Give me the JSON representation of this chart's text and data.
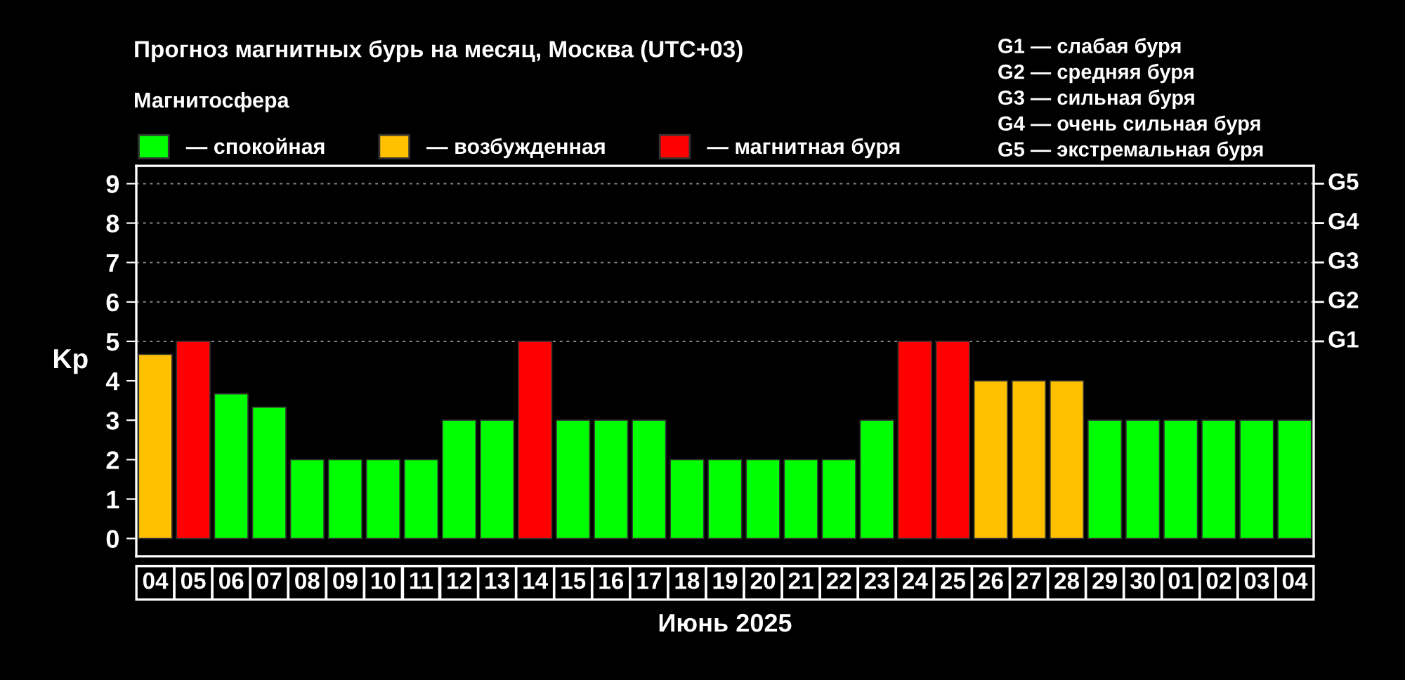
{
  "chart_data": {
    "type": "bar",
    "title": "Прогноз магнитных бурь на месяц, Москва (UTC+03)",
    "xlabel": "Июнь 2025",
    "ylabel": "Kp",
    "legend_title": "Магнитосфера",
    "legend": "top left",
    "categories": [
      "04",
      "05",
      "06",
      "07",
      "08",
      "09",
      "10",
      "11",
      "12",
      "13",
      "14",
      "15",
      "16",
      "17",
      "18",
      "19",
      "20",
      "21",
      "22",
      "23",
      "24",
      "25",
      "26",
      "27",
      "28",
      "29",
      "30",
      "01",
      "02",
      "03",
      "04"
    ],
    "series": [
      {
        "name": "— спокойная",
        "color": "#00ff00",
        "values": [
          null,
          null,
          3.67,
          3.33,
          2,
          2,
          2,
          2,
          3,
          3,
          null,
          3,
          3,
          3,
          2,
          2,
          2,
          2,
          2,
          3,
          null,
          null,
          null,
          null,
          null,
          3,
          3,
          3,
          3,
          3,
          3
        ]
      },
      {
        "name": "— возбужденная",
        "color": "#ffc000",
        "values": [
          4.67,
          null,
          null,
          null,
          null,
          null,
          null,
          null,
          null,
          null,
          null,
          null,
          null,
          null,
          null,
          null,
          null,
          null,
          null,
          null,
          null,
          null,
          4,
          4,
          4,
          null,
          null,
          null,
          null,
          null,
          null
        ]
      },
      {
        "name": "— магнитная буря",
        "color": "#ff0000",
        "values": [
          null,
          5,
          null,
          null,
          null,
          null,
          null,
          null,
          null,
          null,
          5,
          null,
          null,
          null,
          null,
          null,
          null,
          null,
          null,
          null,
          5,
          5,
          null,
          null,
          null,
          null,
          null,
          null,
          null,
          null,
          null
        ]
      }
    ],
    "ylim": [
      -0.45,
      9.45
    ],
    "yticks": [
      0,
      1,
      2,
      3,
      4,
      5,
      6,
      7,
      8,
      9
    ],
    "ref_lines": [
      {
        "axis": "y",
        "value": 5,
        "label": "G1",
        "line_style": "dotted",
        "color": "#888888"
      },
      {
        "axis": "y",
        "value": 6,
        "label": "G2",
        "line_style": "dotted",
        "color": "#888888"
      },
      {
        "axis": "y",
        "value": 7,
        "label": "G3",
        "line_style": "dotted",
        "color": "#888888"
      },
      {
        "axis": "y",
        "value": 8,
        "label": "G4",
        "line_style": "dotted",
        "color": "#888888"
      },
      {
        "axis": "y",
        "value": 9,
        "label": "G5",
        "line_style": "dotted",
        "color": "#888888"
      }
    ],
    "annotations": [
      "G1 — слабая буря",
      "G2 — средняя буря",
      "G3 — сильная буря",
      "G4 — очень сильная буря",
      "G5 — экстремальная буря"
    ]
  }
}
